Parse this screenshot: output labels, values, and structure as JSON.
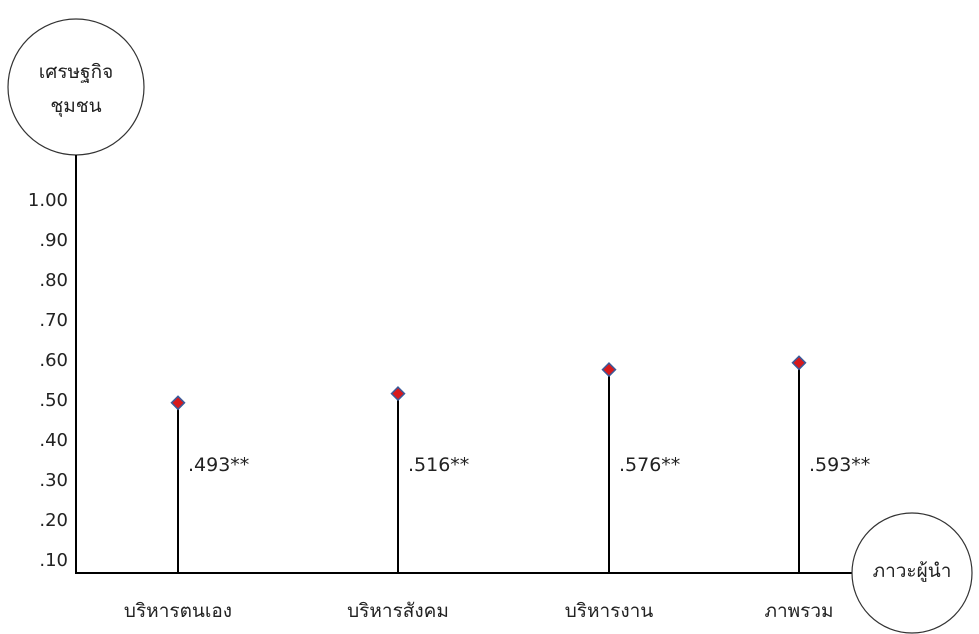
{
  "chart_data": {
    "type": "scatter",
    "y_axis_label": "เศรษฐกิจ ชุมชน",
    "y_axis_label_lines": [
      "เศรษฐกิจ",
      "ชุมชน"
    ],
    "x_axis_label": "ภาวะผู้นำ",
    "y_ticks": [
      ".10",
      ".20",
      ".30",
      ".40",
      ".50",
      ".60",
      ".70",
      ".80",
      ".90",
      "1.00"
    ],
    "y_tick_values": [
      0.1,
      0.2,
      0.3,
      0.4,
      0.5,
      0.6,
      0.7,
      0.8,
      0.9,
      1.0
    ],
    "categories": [
      "บริหารตนเอง",
      "บริหารสังคม",
      "บริหารงาน",
      "ภาพรวม"
    ],
    "values": [
      0.493,
      0.516,
      0.576,
      0.593
    ],
    "data_labels": [
      ".493**",
      ".516**",
      ".576**",
      ".593**"
    ],
    "marker_fill": "#d7191c",
    "marker_stroke": "#3a5a9a",
    "grid": false,
    "legend": "none"
  }
}
